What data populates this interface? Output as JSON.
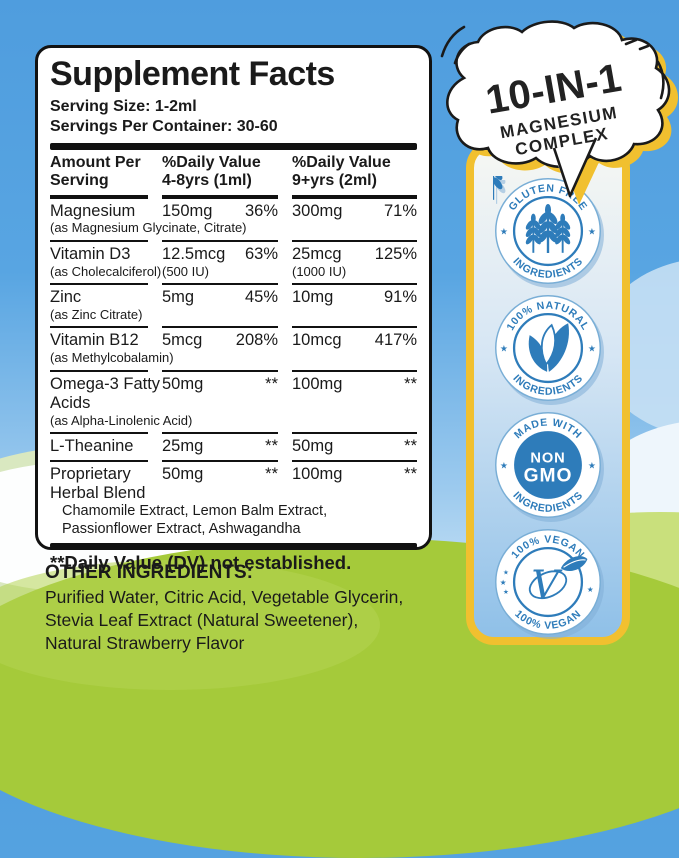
{
  "colors": {
    "sky_top": "#4f9dde",
    "grass": "#a5ca3a",
    "grass_light": "#c9e07c",
    "accent_yellow": "#f1c02f",
    "badge_blue": "#2e7cba",
    "panel_border": "#121212",
    "text": "#1a1a1a"
  },
  "supplement_panel": {
    "title": "Supplement Facts",
    "serving_size": "Serving Size: 1-2ml",
    "servings_per_container": "Servings Per Container: 30-60",
    "columns": [
      "Amount Per Serving",
      "%Daily Value 4-8yrs (1ml)",
      "%Daily Value 9+yrs (2ml)"
    ],
    "rows": [
      {
        "name": "Magnesium",
        "sub": "(as Magnesium Glycinate, Citrate)",
        "sub_wide": true,
        "amt1": "150mg",
        "pct1": "36%",
        "amt2": "300mg",
        "pct2": "71%"
      },
      {
        "name": "Vitamin D3",
        "sub": "(as Cholecalciferol)",
        "sub_wide": false,
        "amt1": "12.5mcg",
        "amt1b": "(500 IU)",
        "pct1": "63%",
        "amt2": "25mcg",
        "amt2b": "(1000 IU)",
        "pct2": "125%"
      },
      {
        "name": "Zinc",
        "sub": "(as Zinc Citrate)",
        "sub_wide": true,
        "amt1": "5mg",
        "pct1": "45%",
        "amt2": "10mg",
        "pct2": "91%"
      },
      {
        "name": "Vitamin B12",
        "sub": "(as Methylcobalamin)",
        "sub_wide": true,
        "amt1": "5mcg",
        "pct1": "208%",
        "amt2": "10mcg",
        "pct2": "417%"
      },
      {
        "name": "Omega-3 Fatty Acids",
        "sub": "(as Alpha-Linolenic Acid)",
        "sub_wide": true,
        "amt1": "50mg",
        "pct1": "**",
        "amt2": "100mg",
        "pct2": "**"
      },
      {
        "name": "L-Theanine",
        "amt1": "25mg",
        "pct1": "**",
        "amt2": "50mg",
        "pct2": "**"
      },
      {
        "name": "Proprietary Herbal Blend",
        "amt1": "50mg",
        "pct1": "**",
        "amt2": "100mg",
        "pct2": "**",
        "extra": [
          "Chamomile Extract, Lemon Balm Extract,",
          "Passionflower Extract, Ashwagandha"
        ]
      }
    ],
    "footnote": "**Daily Value (DV) not established."
  },
  "other_ingredients": {
    "title": "OTHER INGREDIENTS:",
    "lines": [
      "Purified Water, Citric Acid, Vegetable Glycerin,",
      "Stevia Leaf Extract (Natural Sweetener),",
      "Natural Strawberry Flavor"
    ]
  },
  "bubble": {
    "line1": "10-IN-1",
    "line2": "MAGNESIUM",
    "line3": "COMPLEX"
  },
  "badges": [
    {
      "name": "gluten-free",
      "top_text": "GLUTEN FREE",
      "bottom_text": "INGREDIENTS",
      "icon": "wheat"
    },
    {
      "name": "natural",
      "top_text": "100% NATURAL",
      "bottom_text": "INGREDIENTS",
      "icon": "leaves"
    },
    {
      "name": "non-gmo",
      "top_text": "MADE WITH",
      "bottom_text": "INGREDIENTS",
      "icon": "text",
      "center": [
        "NON",
        "GMO"
      ]
    },
    {
      "name": "vegan",
      "top_text": "100% VEGAN",
      "bottom_text": "100% VEGAN",
      "icon": "vegan-v"
    }
  ]
}
